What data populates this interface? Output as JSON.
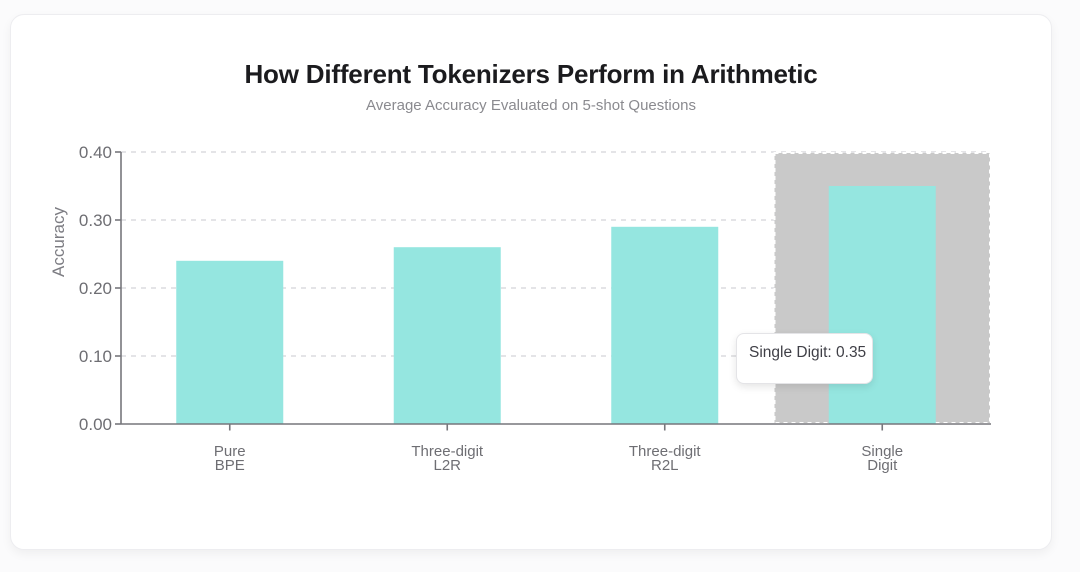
{
  "chart_data": {
    "type": "bar",
    "title": "How Different Tokenizers Perform in Arithmetic",
    "subtitle": "Average Accuracy Evaluated on 5-shot Questions",
    "categories": [
      "Pure\nBPE",
      "Three-digit\nL2R",
      "Three-digit\nR2L",
      "Single\nDigit"
    ],
    "values": [
      0.24,
      0.26,
      0.29,
      0.35
    ],
    "xlabel": "",
    "ylabel": "Accuracy",
    "ylim": [
      0,
      0.4
    ],
    "yticks": [
      "0.00",
      "0.10",
      "0.20",
      "0.30",
      "0.40"
    ],
    "grid": true,
    "legend": false,
    "bar_color": "#95e6e0",
    "highlight": {
      "index": 3,
      "band_color": "#c9c9c9",
      "tooltip_text": "Single Digit: 0.35"
    }
  }
}
